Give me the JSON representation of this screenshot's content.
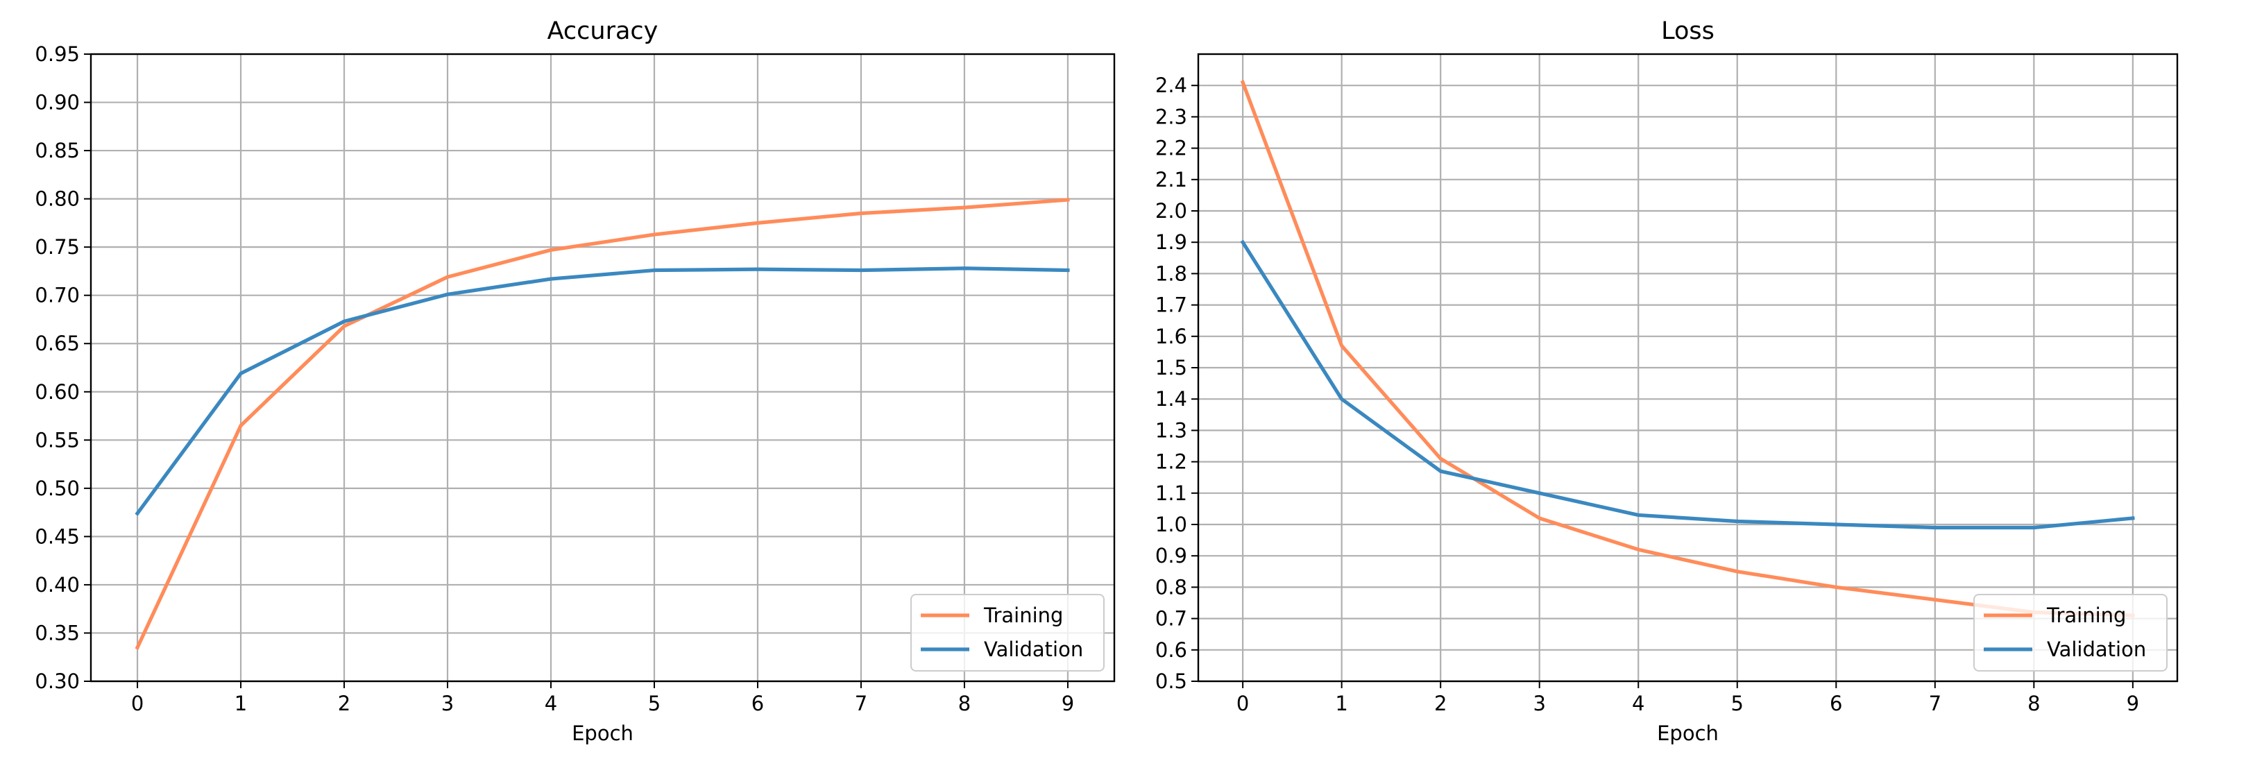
{
  "chart_data": [
    {
      "type": "line",
      "title": "Accuracy",
      "xlabel": "Epoch",
      "ylabel": "",
      "x": [
        0,
        1,
        2,
        3,
        4,
        5,
        6,
        7,
        8,
        9
      ],
      "xticks": [
        "0",
        "1",
        "2",
        "3",
        "4",
        "5",
        "6",
        "7",
        "8",
        "9"
      ],
      "xlim": [
        -0.45,
        9.45
      ],
      "ylim": [
        0.3,
        0.95
      ],
      "yticks": [
        "0.30",
        "0.35",
        "0.40",
        "0.45",
        "0.50",
        "0.55",
        "0.60",
        "0.65",
        "0.70",
        "0.75",
        "0.80",
        "0.85",
        "0.90",
        "0.95"
      ],
      "grid": true,
      "legend_position": "lower right",
      "series": [
        {
          "name": "Training",
          "color": "#ff8c5a",
          "values": [
            0.335,
            0.565,
            0.668,
            0.719,
            0.747,
            0.763,
            0.775,
            0.785,
            0.791,
            0.799
          ]
        },
        {
          "name": "Validation",
          "color": "#3a88c0",
          "values": [
            0.474,
            0.619,
            0.673,
            0.701,
            0.717,
            0.726,
            0.727,
            0.726,
            0.728,
            0.726
          ]
        }
      ]
    },
    {
      "type": "line",
      "title": "Loss",
      "xlabel": "Epoch",
      "ylabel": "",
      "x": [
        0,
        1,
        2,
        3,
        4,
        5,
        6,
        7,
        8,
        9
      ],
      "xticks": [
        "0",
        "1",
        "2",
        "3",
        "4",
        "5",
        "6",
        "7",
        "8",
        "9"
      ],
      "xlim": [
        -0.45,
        9.45
      ],
      "ylim": [
        0.5,
        2.5
      ],
      "yticks": [
        "0.5",
        "0.6",
        "0.7",
        "0.8",
        "0.9",
        "1.0",
        "1.1",
        "1.2",
        "1.3",
        "1.4",
        "1.5",
        "1.6",
        "1.7",
        "1.8",
        "1.9",
        "2.0",
        "2.1",
        "2.2",
        "2.3",
        "2.4"
      ],
      "grid": true,
      "legend_position": "lower right",
      "series": [
        {
          "name": "Training",
          "color": "#ff8c5a",
          "values": [
            2.41,
            1.57,
            1.21,
            1.02,
            0.92,
            0.85,
            0.8,
            0.76,
            0.72,
            0.71
          ]
        },
        {
          "name": "Validation",
          "color": "#3a88c0",
          "values": [
            1.9,
            1.4,
            1.17,
            1.1,
            1.03,
            1.01,
            1.0,
            0.99,
            0.99,
            1.02
          ]
        }
      ]
    }
  ]
}
